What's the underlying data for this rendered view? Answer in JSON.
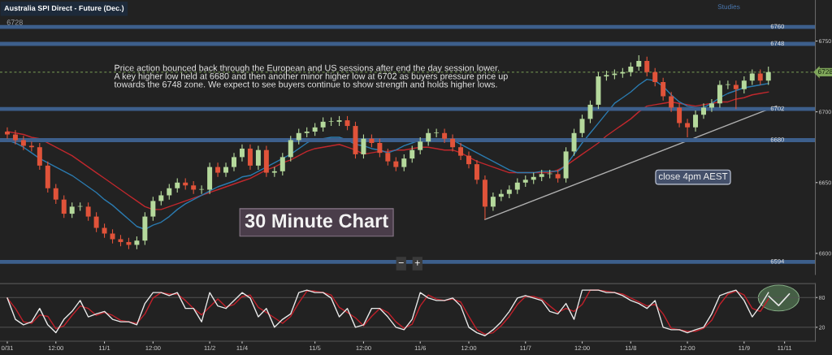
{
  "chart_data": [
    {
      "type": "candlestick",
      "title": "Australia SPI Direct - Future (Dec.)",
      "subtitle": "6728",
      "categories": [
        null,
        null,
        null,
        null,
        null,
        null,
        null,
        null,
        null,
        null,
        null,
        null,
        null,
        null,
        null,
        null,
        null,
        null,
        null,
        null,
        null,
        null,
        null,
        null,
        null,
        null,
        null,
        null,
        null,
        null,
        null,
        null,
        null,
        null,
        null,
        null,
        null,
        null,
        null,
        null,
        null,
        null,
        null,
        null,
        null,
        null,
        null,
        null,
        null,
        null,
        null,
        null,
        null,
        null,
        null,
        null,
        null,
        null,
        null,
        null,
        null,
        null,
        null,
        null,
        null,
        null,
        null,
        null,
        null,
        null,
        null,
        null,
        null,
        null,
        null,
        null,
        null,
        null,
        null,
        null,
        null,
        null,
        null,
        null,
        null,
        null,
        null,
        null,
        null,
        null,
        null,
        null,
        null,
        null,
        null,
        null,
        null,
        null,
        null,
        null
      ],
      "ohlc": [
        [
          6686,
          6689,
          6681,
          6684
        ],
        [
          6684,
          6687,
          6677,
          6680
        ],
        [
          6680,
          6683,
          6673,
          6676
        ],
        [
          6676,
          6679,
          6672,
          6675
        ],
        [
          6675,
          6678,
          6659,
          6662
        ],
        [
          6662,
          6665,
          6643,
          6646
        ],
        [
          6646,
          6649,
          6635,
          6638
        ],
        [
          6638,
          6641,
          6625,
          6628
        ],
        [
          6628,
          6636,
          6625,
          6633
        ],
        [
          6633,
          6636,
          6630,
          6633
        ],
        [
          6633,
          6636,
          6623,
          6626
        ],
        [
          6626,
          6629,
          6615,
          6618
        ],
        [
          6618,
          6621,
          6611,
          6614
        ],
        [
          6614,
          6617,
          6607,
          6610
        ],
        [
          6610,
          6613,
          6605,
          6608
        ],
        [
          6608,
          6611,
          6603,
          6606
        ],
        [
          6606,
          6612,
          6603,
          6609
        ],
        [
          6609,
          6629,
          6606,
          6626
        ],
        [
          6626,
          6640,
          6623,
          6637
        ],
        [
          6637,
          6644,
          6634,
          6641
        ],
        [
          6641,
          6649,
          6638,
          6646
        ],
        [
          6646,
          6653,
          6643,
          6650
        ],
        [
          6650,
          6653,
          6645,
          6648
        ],
        [
          6648,
          6651,
          6642,
          6645
        ],
        [
          6645,
          6648,
          6642,
          6645
        ],
        [
          6645,
          6664,
          6642,
          6661
        ],
        [
          6661,
          6664,
          6654,
          6657
        ],
        [
          6657,
          6664,
          6654,
          6661
        ],
        [
          6661,
          6671,
          6658,
          6668
        ],
        [
          6668,
          6677,
          6665,
          6674
        ],
        [
          6674,
          6677,
          6659,
          6662
        ],
        [
          6662,
          6676,
          6659,
          6673
        ],
        [
          6673,
          6676,
          6654,
          6657
        ],
        [
          6657,
          6661,
          6654,
          6658
        ],
        [
          6658,
          6671,
          6655,
          6668
        ],
        [
          6668,
          6683,
          6665,
          6680
        ],
        [
          6680,
          6688,
          6677,
          6685
        ],
        [
          6685,
          6689,
          6682,
          6686
        ],
        [
          6686,
          6692,
          6683,
          6689
        ],
        [
          6689,
          6696,
          6686,
          6693
        ],
        [
          6693,
          6696,
          6690,
          6693
        ],
        [
          6693,
          6697,
          6690,
          6694
        ],
        [
          6694,
          6697,
          6687,
          6690
        ],
        [
          6690,
          6693,
          6667,
          6670
        ],
        [
          6670,
          6684,
          6667,
          6681
        ],
        [
          6681,
          6684,
          6675,
          6678
        ],
        [
          6678,
          6681,
          6668,
          6671
        ],
        [
          6671,
          6674,
          6662,
          6665
        ],
        [
          6665,
          6668,
          6658,
          6661
        ],
        [
          6661,
          6670,
          6658,
          6667
        ],
        [
          6667,
          6676,
          6664,
          6673
        ],
        [
          6673,
          6682,
          6670,
          6679
        ],
        [
          6679,
          6688,
          6676,
          6685
        ],
        [
          6685,
          6688,
          6682,
          6685
        ],
        [
          6685,
          6688,
          6678,
          6681
        ],
        [
          6681,
          6684,
          6672,
          6675
        ],
        [
          6675,
          6678,
          6666,
          6669
        ],
        [
          6669,
          6672,
          6660,
          6663
        ],
        [
          6663,
          6666,
          6649,
          6652
        ],
        [
          6652,
          6655,
          6624,
          6633
        ],
        [
          6633,
          6643,
          6630,
          6640
        ],
        [
          6640,
          6645,
          6637,
          6642
        ],
        [
          6642,
          6648,
          6639,
          6645
        ],
        [
          6645,
          6653,
          6642,
          6650
        ],
        [
          6650,
          6655,
          6647,
          6652
        ],
        [
          6652,
          6657,
          6649,
          6654
        ],
        [
          6654,
          6659,
          6651,
          6656
        ],
        [
          6656,
          6659,
          6653,
          6656
        ],
        [
          6656,
          6659,
          6650,
          6653
        ],
        [
          6653,
          6675,
          6650,
          6672
        ],
        [
          6672,
          6688,
          6669,
          6685
        ],
        [
          6685,
          6698,
          6682,
          6695
        ],
        [
          6695,
          6708,
          6692,
          6705
        ],
        [
          6705,
          6728,
          6702,
          6725
        ],
        [
          6725,
          6729,
          6722,
          6726
        ],
        [
          6726,
          6730,
          6723,
          6727
        ],
        [
          6727,
          6731,
          6724,
          6728
        ],
        [
          6728,
          6735,
          6725,
          6732
        ],
        [
          6732,
          6740,
          6729,
          6736
        ],
        [
          6736,
          6739,
          6725,
          6728
        ],
        [
          6728,
          6731,
          6718,
          6721
        ],
        [
          6721,
          6724,
          6708,
          6711
        ],
        [
          6711,
          6714,
          6700,
          6703
        ],
        [
          6703,
          6706,
          6689,
          6692
        ],
        [
          6692,
          6695,
          6682,
          6689
        ],
        [
          6689,
          6701,
          6686,
          6698
        ],
        [
          6698,
          6706,
          6695,
          6703
        ],
        [
          6703,
          6709,
          6700,
          6706
        ],
        [
          6706,
          6722,
          6703,
          6719
        ],
        [
          6719,
          6722,
          6716,
          6719
        ],
        [
          6719,
          6722,
          6702,
          6716
        ],
        [
          6716,
          6725,
          6713,
          6722
        ],
        [
          6722,
          6730,
          6719,
          6727
        ],
        [
          6727,
          6730,
          6719,
          6722
        ],
        [
          6722,
          6732,
          6719,
          6728
        ],
        null,
        null,
        null,
        null,
        null
      ],
      "colors": [
        "#e0533a",
        "#e0533a",
        "#e0533a",
        "#e0533a",
        "#e0533a",
        "#e0533a",
        "#e0533a",
        "#e0533a",
        "#b5d99c",
        "#b5d99c",
        "#e0533a",
        "#e0533a",
        "#e0533a",
        "#e0533a",
        "#e0533a",
        "#e0533a",
        "#b5d99c",
        "#b5d99c",
        "#b5d99c",
        "#b5d99c",
        "#b5d99c",
        "#b5d99c",
        "#e0533a",
        "#e0533a",
        "#b5d99c",
        "#b5d99c",
        "#e0533a",
        "#b5d99c",
        "#b5d99c",
        "#b5d99c",
        "#e0533a",
        "#b5d99c",
        "#e0533a",
        "#b5d99c",
        "#b5d99c",
        "#b5d99c",
        "#b5d99c",
        "#b5d99c",
        "#b5d99c",
        "#b5d99c",
        "#b5d99c",
        "#b5d99c",
        "#e0533a",
        "#e0533a",
        "#b5d99c",
        "#e0533a",
        "#e0533a",
        "#e0533a",
        "#e0533a",
        "#b5d99c",
        "#b5d99c",
        "#b5d99c",
        "#b5d99c",
        "#b5d99c",
        "#e0533a",
        "#e0533a",
        "#e0533a",
        "#e0533a",
        "#e0533a",
        "#e0533a",
        "#b5d99c",
        "#b5d99c",
        "#b5d99c",
        "#b5d99c",
        "#b5d99c",
        "#b5d99c",
        "#b5d99c",
        "#b5d99c",
        "#e0533a",
        "#b5d99c",
        "#b5d99c",
        "#b5d99c",
        "#b5d99c",
        "#b5d99c",
        "#b5d99c",
        "#b5d99c",
        "#b5d99c",
        "#b5d99c",
        "#b5d99c",
        "#e0533a",
        "#e0533a",
        "#e0533a",
        "#e0533a",
        "#e0533a",
        "#e0533a",
        "#b5d99c",
        "#b5d99c",
        "#b5d99c",
        "#b5d99c",
        "#b5d99c",
        "#e0533a",
        "#b5d99c",
        "#b5d99c",
        "#e0533a",
        "#b5d99c",
        null,
        null,
        null,
        null,
        null
      ],
      "series": [
        {
          "type": "line",
          "color": "#c0282d",
          "values": [
            6686,
            6685,
            6684,
            6682,
            6681,
            6678,
            6675,
            6672,
            6669,
            6665,
            6661,
            6657,
            6653,
            6649,
            6645,
            6641,
            6637,
            6633,
            6631,
            6631,
            6633,
            6635,
            6637,
            6639,
            6641,
            6643,
            6645,
            6647,
            6649,
            6651,
            6653,
            6656,
            6659,
            6661,
            6664,
            6666,
            6669,
            6672,
            6674,
            6675,
            6676,
            6677,
            6675,
            6673,
            6670,
            6671,
            6672,
            6672,
            6673,
            6673,
            6674,
            6675,
            6675,
            6674,
            6673,
            6673,
            6671,
            6668,
            6665,
            6663,
            6661,
            6659,
            6657,
            6657,
            6657,
            6657,
            6657,
            6657,
            6659,
            6662,
            6666,
            6670,
            6674,
            6678,
            6683,
            6687,
            6691,
            6695,
            6700,
            6704,
            6705,
            6706,
            6707,
            6706,
            6705,
            6704,
            6705,
            6706,
            6707,
            6707,
            6709,
            6710,
            6712,
            6713,
            6714,
            null,
            null,
            null,
            null,
            null
          ]
        },
        {
          "type": "line",
          "color": "#2b7bb0",
          "values": [
            6680,
            6678,
            6675,
            6671,
            6667,
            6664,
            6661,
            6658,
            6655,
            6651,
            6647,
            6643,
            6638,
            6634,
            6629,
            6624,
            6619,
            6617,
            6620,
            6622,
            6626,
            6631,
            6635,
            6638,
            6641,
            6644,
            6647,
            6649,
            6651,
            6654,
            6655,
            6658,
            6661,
            6664,
            6667,
            6670,
            6674,
            6678,
            6681,
            6681,
            6682,
            6682,
            6680,
            6677,
            6676,
            6674,
            6673,
            6671,
            6673,
            6676,
            6678,
            6680,
            6680,
            6681,
            6681,
            6680,
            6677,
            6674,
            6671,
            6668,
            6665,
            6662,
            6659,
            6657,
            6657,
            6657,
            6658,
            6658,
            6658,
            6662,
            6670,
            6678,
            6685,
            6692,
            6699,
            6706,
            6710,
            6714,
            6719,
            6723,
            6722,
            6718,
            6712,
            6707,
            6704,
            6703,
            6703,
            6706,
            6710,
            6713,
            6715,
            6717,
            6718,
            6719,
            6720,
            null,
            null,
            null,
            null,
            null
          ]
        },
        {
          "type": "line",
          "color": "#b0b0b0",
          "values": [
            null,
            null,
            null,
            null,
            null,
            null,
            null,
            null,
            null,
            null,
            null,
            null,
            null,
            null,
            null,
            null,
            null,
            null,
            null,
            null,
            null,
            null,
            null,
            null,
            null,
            null,
            null,
            null,
            null,
            null,
            null,
            null,
            null,
            null,
            null,
            null,
            null,
            null,
            null,
            null,
            null,
            null,
            null,
            null,
            null,
            null,
            null,
            null,
            null,
            null,
            null,
            null,
            null,
            null,
            null,
            null,
            null,
            null,
            null,
            6624,
            null,
            null,
            null,
            null,
            null,
            null,
            null,
            null,
            null,
            null,
            null,
            null,
            null,
            null,
            null,
            null,
            null,
            null,
            null,
            null,
            null,
            null,
            null,
            null,
            null,
            null,
            null,
            null,
            null,
            null,
            null,
            null,
            null,
            null,
            null,
            6704,
            null,
            null,
            null,
            null
          ]
        }
      ],
      "ylim": [
        6585,
        6779
      ],
      "yticks": [
        6600,
        6650,
        6700,
        6750
      ],
      "tick_labels": "y",
      "ref_lines": [
        {
          "axis": "y",
          "value": 6760,
          "label": "6760",
          "color": "#3d5f8c"
        },
        {
          "axis": "y",
          "value": 6748,
          "label": "6748",
          "color": "#3d5f8c"
        },
        {
          "axis": "y",
          "value": 6702,
          "label": "6702",
          "color": "#3d5f8c"
        },
        {
          "axis": "y",
          "value": 6680,
          "label": "6680",
          "color": "#3d5f8c"
        },
        {
          "axis": "y",
          "value": 6594,
          "label": "6594",
          "color": "#3d5f8c"
        },
        {
          "axis": "y",
          "value": 6728,
          "label": "6728",
          "color": "#7fa55a",
          "line_style": "dashed"
        }
      ],
      "annotations": [
        "Price action bounced back through the European and US sessions after end the day session lower.\nA key higher low held at 6680 and then another minor higher low at 6702 as buyers pressure price up\ntowards the 6748 zone. We expect to see buyers continue to show strength and holds higher lows.",
        "30 Minute Chart",
        "close 4pm AEST",
        "Studies",
        "−",
        "+"
      ]
    },
    {
      "type": "line",
      "categories": [
        "0/31",
        null,
        null,
        null,
        null,
        null,
        "12:00",
        null,
        null,
        null,
        null,
        null,
        "11/1",
        null,
        null,
        null,
        null,
        null,
        "12:00",
        null,
        null,
        null,
        null,
        null,
        null,
        "11/2",
        null,
        null,
        null,
        "11/4",
        null,
        null,
        null,
        null,
        null,
        null,
        null,
        null,
        "11/5",
        null,
        null,
        null,
        null,
        null,
        "12:00",
        null,
        null,
        null,
        null,
        null,
        null,
        "11/6",
        null,
        null,
        null,
        null,
        null,
        "12:00",
        null,
        null,
        null,
        null,
        null,
        null,
        "11/7",
        null,
        null,
        null,
        null,
        null,
        null,
        "12:00",
        null,
        null,
        null,
        null,
        null,
        "11/8",
        null,
        null,
        null,
        null,
        null,
        null,
        "12:00",
        null,
        null,
        null,
        null,
        null,
        null,
        "11/9",
        null,
        null,
        null,
        null,
        "11/11",
        null,
        null,
        null
      ],
      "series": [
        {
          "color": "#c0202a",
          "values": [
            79,
            58,
            31,
            28,
            45,
            42,
            17,
            23,
            44,
            63,
            58,
            44,
            50,
            44,
            34,
            31,
            28,
            47,
            79,
            90,
            87,
            87,
            74,
            58,
            45,
            61,
            77,
            61,
            66,
            82,
            85,
            60,
            50,
            39,
            28,
            42,
            69,
            93,
            93,
            90,
            85,
            60,
            50,
            39,
            23,
            42,
            58,
            50,
            31,
            18,
            26,
            63,
            85,
            77,
            74,
            77,
            71,
            42,
            15,
            6,
            9,
            23,
            42,
            66,
            82,
            82,
            77,
            63,
            50,
            58,
            52,
            66,
            95,
            95,
            93,
            90,
            87,
            79,
            71,
            63,
            66,
            47,
            18,
            15,
            12,
            12,
            18,
            34,
            66,
            87,
            93,
            85,
            58,
            52,
            77,
            null,
            null,
            null,
            null,
            null
          ]
        },
        {
          "color": "#e8e8e8",
          "values": [
            79,
            36,
            25,
            31,
            58,
            25,
            9,
            36,
            52,
            74,
            41,
            47,
            52,
            36,
            31,
            31,
            25,
            68,
            90,
            90,
            84,
            90,
            58,
            58,
            31,
            90,
            63,
            58,
            74,
            90,
            79,
            41,
            58,
            20,
            36,
            47,
            90,
            95,
            90,
            90,
            79,
            41,
            58,
            20,
            25,
            58,
            58,
            41,
            20,
            15,
            36,
            90,
            79,
            74,
            74,
            79,
            63,
            20,
            9,
            3,
            15,
            31,
            52,
            79,
            84,
            79,
            74,
            52,
            47,
            68,
            36,
            95,
            95,
            95,
            90,
            90,
            84,
            74,
            68,
            58,
            74,
            20,
            15,
            15,
            9,
            15,
            20,
            47,
            84,
            90,
            95,
            74,
            41,
            63,
            90,
            null,
            null,
            null,
            null,
            null
          ]
        }
      ],
      "ylim": [
        -8,
        108
      ],
      "yticks": [
        20,
        80
      ],
      "grid": "y"
    }
  ]
}
